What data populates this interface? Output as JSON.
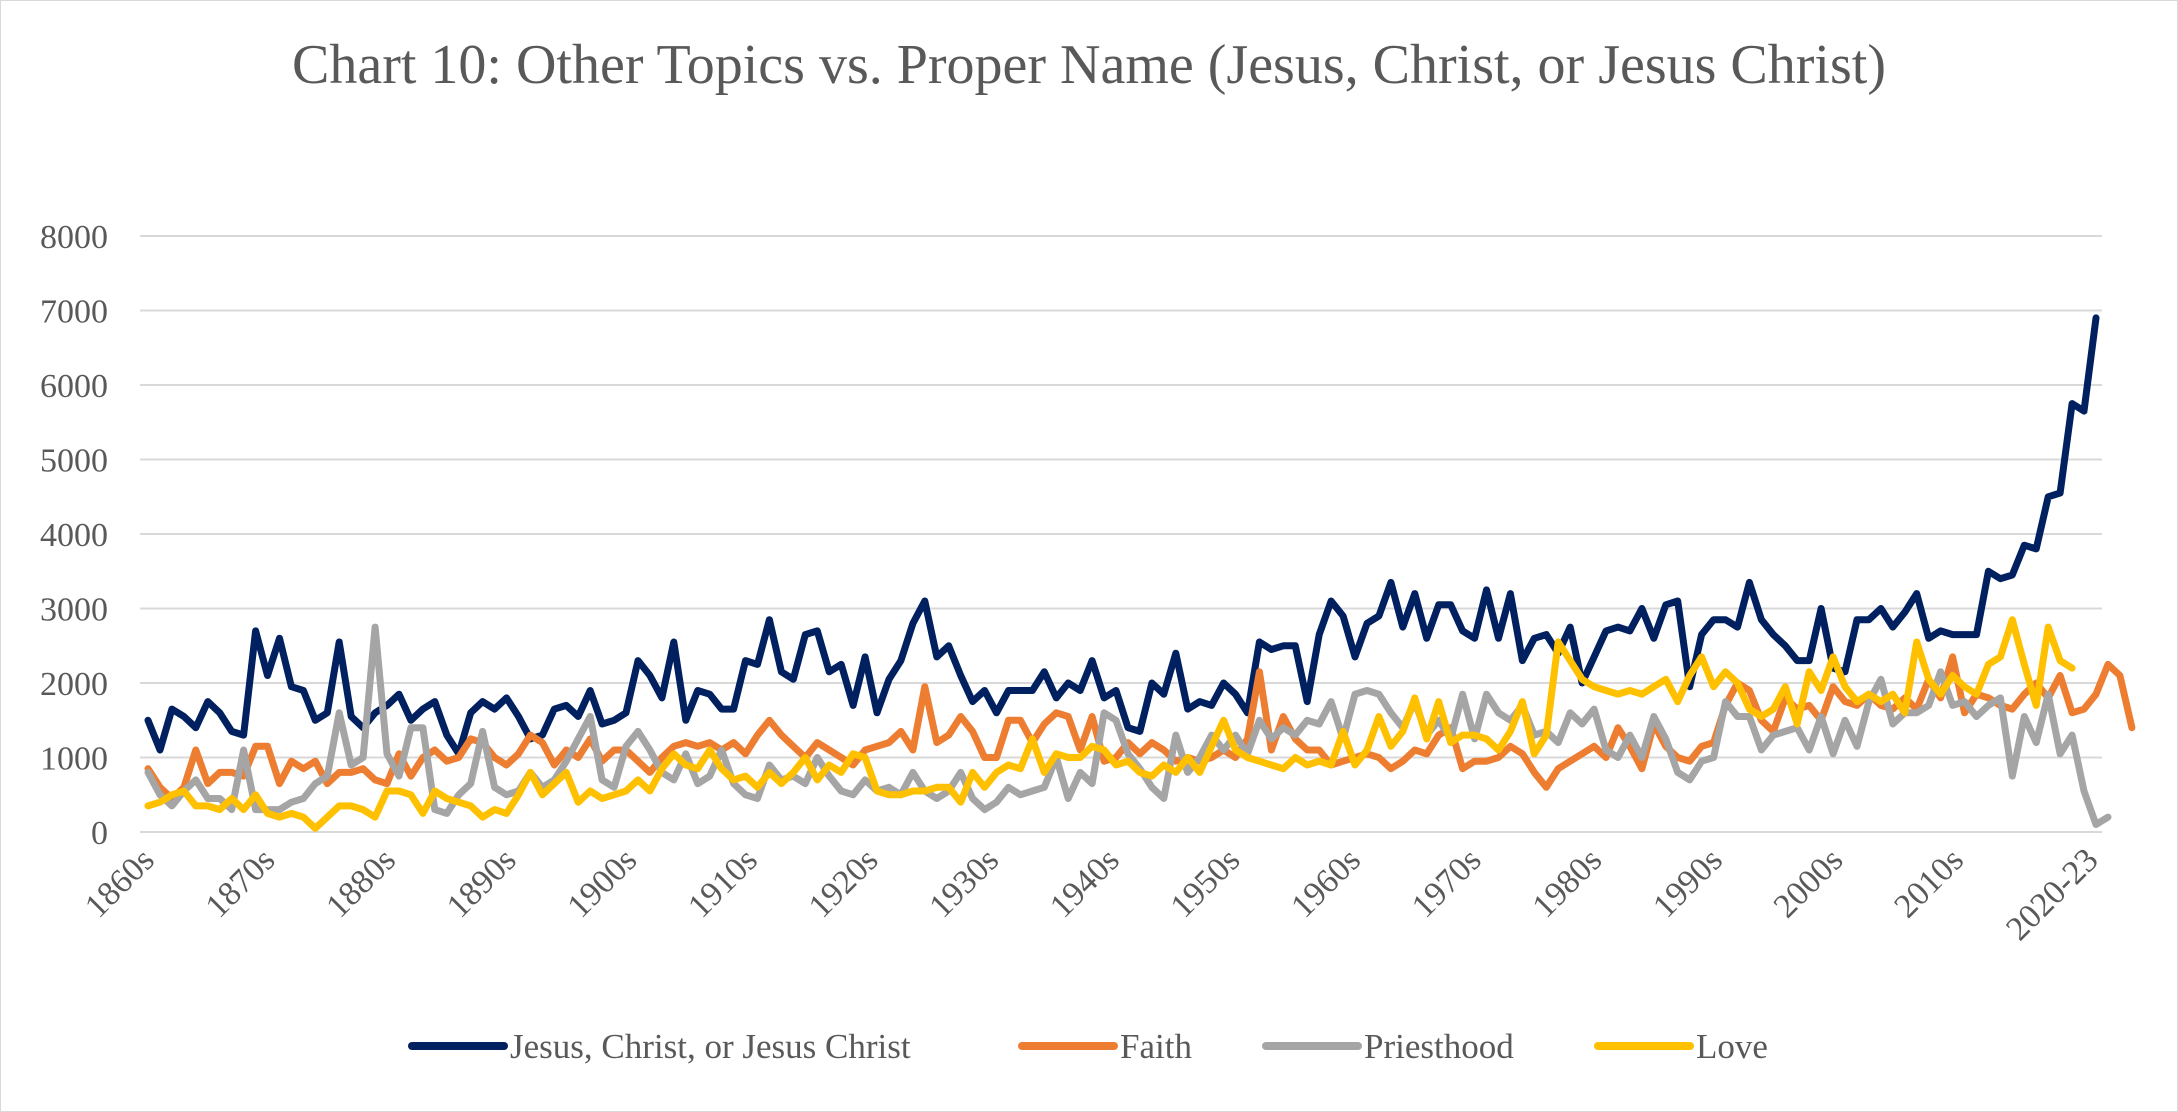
{
  "chart_data": {
    "type": "line",
    "title": "Chart 10: Other Topics vs. Proper Name (Jesus, Christ, or Jesus Christ)",
    "xlabel": "",
    "ylabel": "",
    "ylim": [
      0,
      8000
    ],
    "yticks": [
      "0",
      "1000",
      "2000",
      "3000",
      "4000",
      "5000",
      "6000",
      "7000",
      "8000"
    ],
    "xtick_labels": [
      "1860s",
      "1870s",
      "1880s",
      "1890s",
      "1900s",
      "1910s",
      "1920s",
      "1930s",
      "1940s",
      "1950s",
      "1960s",
      "1970s",
      "1980s",
      "1990s",
      "2000s",
      "2010s",
      "2020-23"
    ],
    "grid": true,
    "legend_position": "bottom",
    "series": [
      {
        "name": "Jesus, Christ, or Jesus Christ",
        "color": "#002060",
        "values": [
          1500,
          1100,
          1650,
          1550,
          1400,
          1750,
          1600,
          1350,
          1300,
          2700,
          2100,
          2600,
          1950,
          1900,
          1500,
          1600,
          2550,
          1550,
          1400,
          1600,
          1700,
          1850,
          1500,
          1650,
          1750,
          1300,
          1050,
          1600,
          1750,
          1650,
          1800,
          1550,
          1250,
          1300,
          1650,
          1700,
          1550,
          1900,
          1450,
          1500,
          1600,
          2300,
          2100,
          1800,
          2550,
          1500,
          1900,
          1850,
          1650,
          1650,
          2300,
          2250,
          2850,
          2150,
          2050,
          2650,
          2700,
          2150,
          2250,
          1700,
          2350,
          1600,
          2050,
          2300,
          2800,
          3100,
          2350,
          2500,
          2100,
          1750,
          1900,
          1600,
          1900,
          1900,
          1900,
          2150,
          1800,
          2000,
          1900,
          2300,
          1800,
          1900,
          1400,
          1350,
          2000,
          1850,
          2400,
          1650,
          1750,
          1700,
          2000,
          1850,
          1600,
          2550,
          2450,
          2500,
          2500,
          1750,
          2650,
          3100,
          2900,
          2350,
          2800,
          2900,
          3350,
          2750,
          3200,
          2600,
          3050,
          3050,
          2700,
          2600,
          3250,
          2600,
          3200,
          2300,
          2600,
          2650,
          2400,
          2750,
          2000,
          2350,
          2700,
          2750,
          2700,
          3000,
          2600,
          3050,
          3100,
          1950,
          2650,
          2850,
          2850,
          2750,
          3350,
          2850,
          2650,
          2500,
          2300,
          2300,
          3000,
          2200,
          2150,
          2850,
          2850,
          3000,
          2750,
          2950,
          3200,
          2600,
          2700,
          2650,
          2650,
          2650,
          3500,
          3400,
          3450,
          3850,
          3800,
          4500,
          4550,
          5750,
          5650,
          6900
        ]
      },
      {
        "name": "Faith",
        "color": "#ED7D31",
        "values": [
          850,
          600,
          450,
          600,
          1100,
          650,
          800,
          800,
          750,
          1150,
          1150,
          650,
          950,
          850,
          950,
          650,
          800,
          800,
          850,
          700,
          650,
          1050,
          750,
          1000,
          1100,
          950,
          1000,
          1250,
          1200,
          1000,
          900,
          1050,
          1300,
          1200,
          900,
          1100,
          1000,
          1250,
          950,
          1100,
          1100,
          950,
          800,
          1000,
          1150,
          1200,
          1150,
          1200,
          1100,
          1200,
          1050,
          1300,
          1500,
          1300,
          1150,
          1000,
          1200,
          1100,
          1000,
          900,
          1100,
          1150,
          1200,
          1350,
          1100,
          1950,
          1200,
          1300,
          1550,
          1350,
          1000,
          1000,
          1500,
          1500,
          1200,
          1450,
          1600,
          1550,
          1100,
          1550,
          950,
          1000,
          1200,
          1050,
          1200,
          1100,
          950,
          1000,
          950,
          1000,
          1100,
          1000,
          1250,
          2150,
          1100,
          1550,
          1250,
          1100,
          1100,
          900,
          950,
          1000,
          1050,
          1000,
          850,
          950,
          1100,
          1050,
          1300,
          1400,
          850,
          950,
          950,
          1000,
          1150,
          1050,
          800,
          600,
          850,
          950,
          1050,
          1150,
          1000,
          1400,
          1150,
          850,
          1450,
          1150,
          1000,
          950,
          1150,
          1200,
          1700,
          2000,
          1900,
          1500,
          1350,
          1800,
          1650,
          1700,
          1500,
          1950,
          1750,
          1700,
          1850,
          1700,
          1650,
          1800,
          1650,
          2050,
          1800,
          2350,
          1600,
          1850,
          1800,
          1700,
          1650,
          1850,
          2000,
          1800,
          2100,
          1600,
          1650,
          1850,
          2250,
          2100,
          1400
        ]
      },
      {
        "name": "Priesthood",
        "color": "#A5A5A5",
        "values": [
          800,
          500,
          350,
          550,
          700,
          450,
          450,
          300,
          1100,
          300,
          300,
          300,
          400,
          450,
          650,
          750,
          1600,
          900,
          1000,
          2750,
          1050,
          750,
          1400,
          1400,
          300,
          250,
          500,
          650,
          1350,
          600,
          500,
          550,
          800,
          600,
          700,
          950,
          1250,
          1550,
          700,
          600,
          1150,
          1350,
          1100,
          800,
          700,
          1050,
          650,
          750,
          1100,
          650,
          500,
          450,
          900,
          700,
          750,
          650,
          1000,
          750,
          550,
          500,
          700,
          550,
          600,
          500,
          800,
          550,
          450,
          550,
          800,
          450,
          300,
          400,
          600,
          500,
          550,
          600,
          1000,
          450,
          800,
          650,
          1600,
          1500,
          1050,
          850,
          600,
          450,
          1300,
          800,
          1000,
          1300,
          1100,
          1300,
          1050,
          1500,
          1250,
          1400,
          1300,
          1500,
          1450,
          1750,
          1250,
          1850,
          1900,
          1850,
          1600,
          1400,
          1750,
          1300,
          1500,
          1250,
          1850,
          1250,
          1850,
          1600,
          1500,
          1700,
          1300,
          1350,
          1200,
          1600,
          1450,
          1650,
          1100,
          1000,
          1300,
          1000,
          1550,
          1250,
          800,
          700,
          950,
          1000,
          1750,
          1550,
          1550,
          1100,
          1300,
          1350,
          1400,
          1100,
          1550,
          1050,
          1500,
          1150,
          1750,
          2050,
          1450,
          1600,
          1600,
          1700,
          2150,
          1700,
          1750,
          1550,
          1700,
          1800,
          750,
          1550,
          1200,
          1850,
          1050,
          1300,
          550,
          100,
          200
        ]
      },
      {
        "name": "Love",
        "color": "#FFC000",
        "values": [
          350,
          400,
          500,
          550,
          350,
          350,
          300,
          450,
          300,
          500,
          250,
          200,
          250,
          200,
          50,
          200,
          350,
          350,
          300,
          200,
          550,
          550,
          500,
          250,
          550,
          450,
          400,
          350,
          200,
          300,
          250,
          500,
          800,
          500,
          650,
          800,
          400,
          550,
          450,
          500,
          550,
          700,
          550,
          850,
          1050,
          900,
          850,
          1100,
          850,
          700,
          750,
          600,
          800,
          650,
          800,
          1000,
          700,
          900,
          800,
          1050,
          1000,
          550,
          500,
          500,
          550,
          550,
          600,
          600,
          400,
          800,
          600,
          800,
          900,
          850,
          1250,
          800,
          1050,
          1000,
          1000,
          1150,
          1100,
          900,
          950,
          800,
          750,
          900,
          800,
          1000,
          800,
          1150,
          1500,
          1100,
          1000,
          950,
          900,
          850,
          1000,
          900,
          950,
          900,
          1350,
          900,
          1100,
          1550,
          1150,
          1350,
          1800,
          1250,
          1750,
          1200,
          1300,
          1300,
          1250,
          1100,
          1350,
          1750,
          1050,
          1300,
          2550,
          2300,
          2050,
          1950,
          1900,
          1850,
          1900,
          1850,
          1950,
          2050,
          1750,
          2100,
          2350,
          1950,
          2150,
          2000,
          1650,
          1550,
          1650,
          1950,
          1450,
          2150,
          1900,
          2350,
          1950,
          1750,
          1850,
          1750,
          1850,
          1600,
          2550,
          2050,
          1850,
          2100,
          1950,
          1850,
          2250,
          2350,
          2850,
          2250,
          1700,
          2750,
          2300,
          2200
        ]
      }
    ]
  }
}
